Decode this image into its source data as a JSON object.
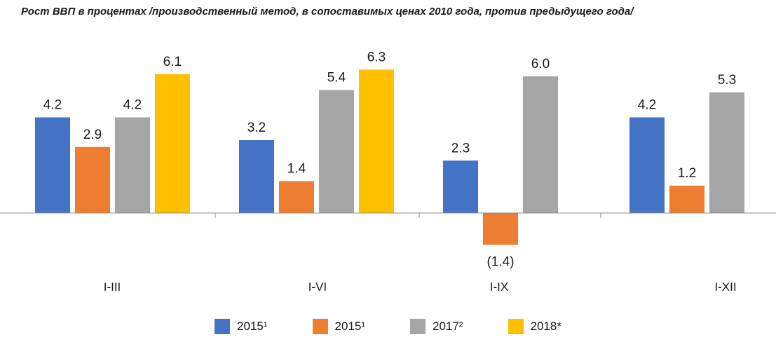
{
  "chart_data": {
    "type": "bar",
    "title": "Рост ВВП в процентах /производственный метод, в сопоставимых ценах 2010 года, против предыдущего года/",
    "categories": [
      "I-III",
      "I-VI",
      "I-IX",
      "I-XII"
    ],
    "series": [
      {
        "name": "2015¹",
        "color": "#4472c4",
        "values": [
          4.2,
          3.2,
          2.3,
          4.2
        ],
        "labels": [
          "4.2",
          "3.2",
          "2.3",
          "4.2"
        ]
      },
      {
        "name": "2015¹",
        "color": "#ed7d31",
        "values": [
          2.9,
          1.4,
          -1.4,
          1.2
        ],
        "labels": [
          "2.9",
          "1.4",
          "(1.4)",
          "1.2"
        ]
      },
      {
        "name": "2017²",
        "color": "#a5a5a5",
        "values": [
          4.2,
          5.4,
          6.0,
          5.3
        ],
        "labels": [
          "4.2",
          "5.4",
          "6.0",
          "5.3"
        ]
      },
      {
        "name": "2018*",
        "color": "#ffc000",
        "values": [
          6.1,
          6.3,
          null,
          null
        ],
        "labels": [
          "6.1",
          "6.3",
          "",
          ""
        ]
      }
    ],
    "ylim": [
      -2.2,
      7.0
    ],
    "grid": false,
    "legend": "bottom"
  }
}
